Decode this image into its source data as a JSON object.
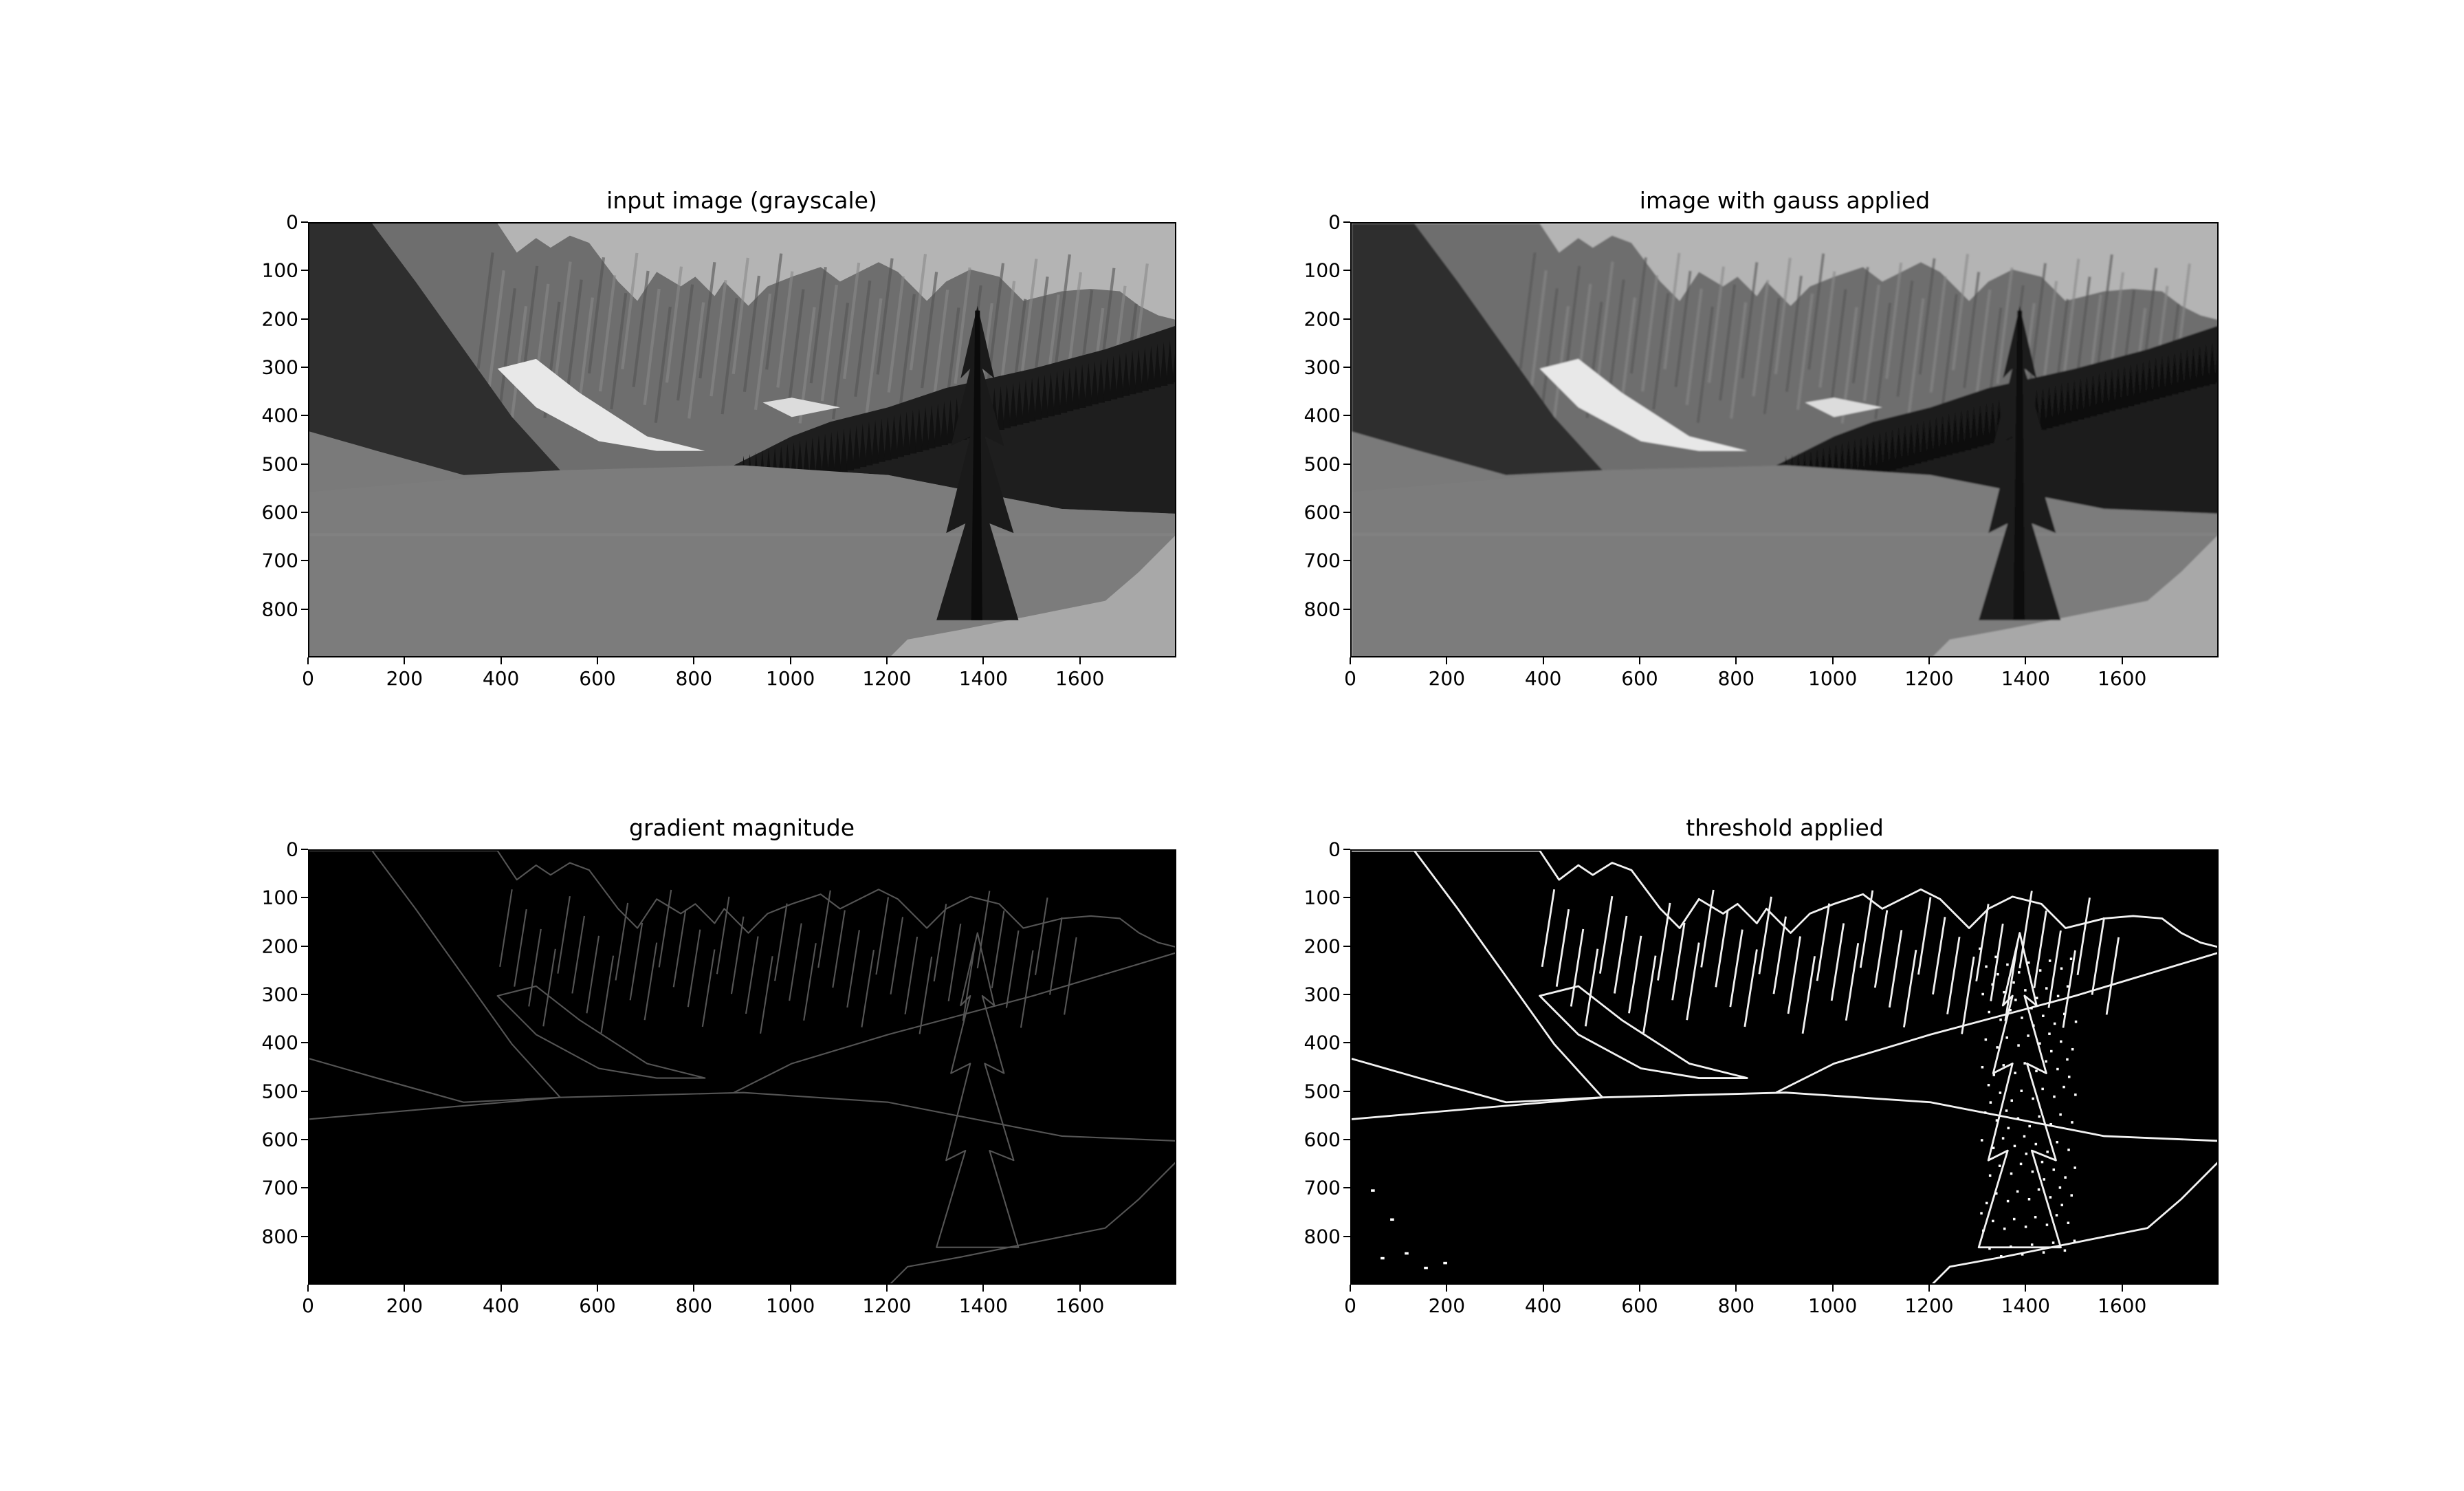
{
  "figure": {
    "background": "#ffffff",
    "panels": [
      {
        "id": "input",
        "title": "input image (grayscale)",
        "style": "grayscale",
        "x_ticks": [
          "0",
          "200",
          "400",
          "600",
          "800",
          "1000",
          "1200",
          "1400",
          "1600"
        ],
        "y_ticks": [
          "0",
          "100",
          "200",
          "300",
          "400",
          "500",
          "600",
          "700",
          "800"
        ]
      },
      {
        "id": "gauss",
        "title": "image with gauss applied",
        "style": "grayscale",
        "x_ticks": [
          "0",
          "200",
          "400",
          "600",
          "800",
          "1000",
          "1200",
          "1400",
          "1600"
        ],
        "y_ticks": [
          "0",
          "100",
          "200",
          "300",
          "400",
          "500",
          "600",
          "700",
          "800"
        ]
      },
      {
        "id": "gradient",
        "title": "gradient magnitude",
        "style": "edges-dim",
        "x_ticks": [
          "0",
          "200",
          "400",
          "600",
          "800",
          "1000",
          "1200",
          "1400",
          "1600"
        ],
        "y_ticks": [
          "0",
          "100",
          "200",
          "300",
          "400",
          "500",
          "600",
          "700",
          "800"
        ]
      },
      {
        "id": "threshold",
        "title": "threshold applied",
        "style": "edges-bright",
        "x_ticks": [
          "0",
          "200",
          "400",
          "600",
          "800",
          "1000",
          "1200",
          "1400",
          "1600"
        ],
        "y_ticks": [
          "0",
          "100",
          "200",
          "300",
          "400",
          "500",
          "600",
          "700",
          "800"
        ]
      }
    ]
  }
}
